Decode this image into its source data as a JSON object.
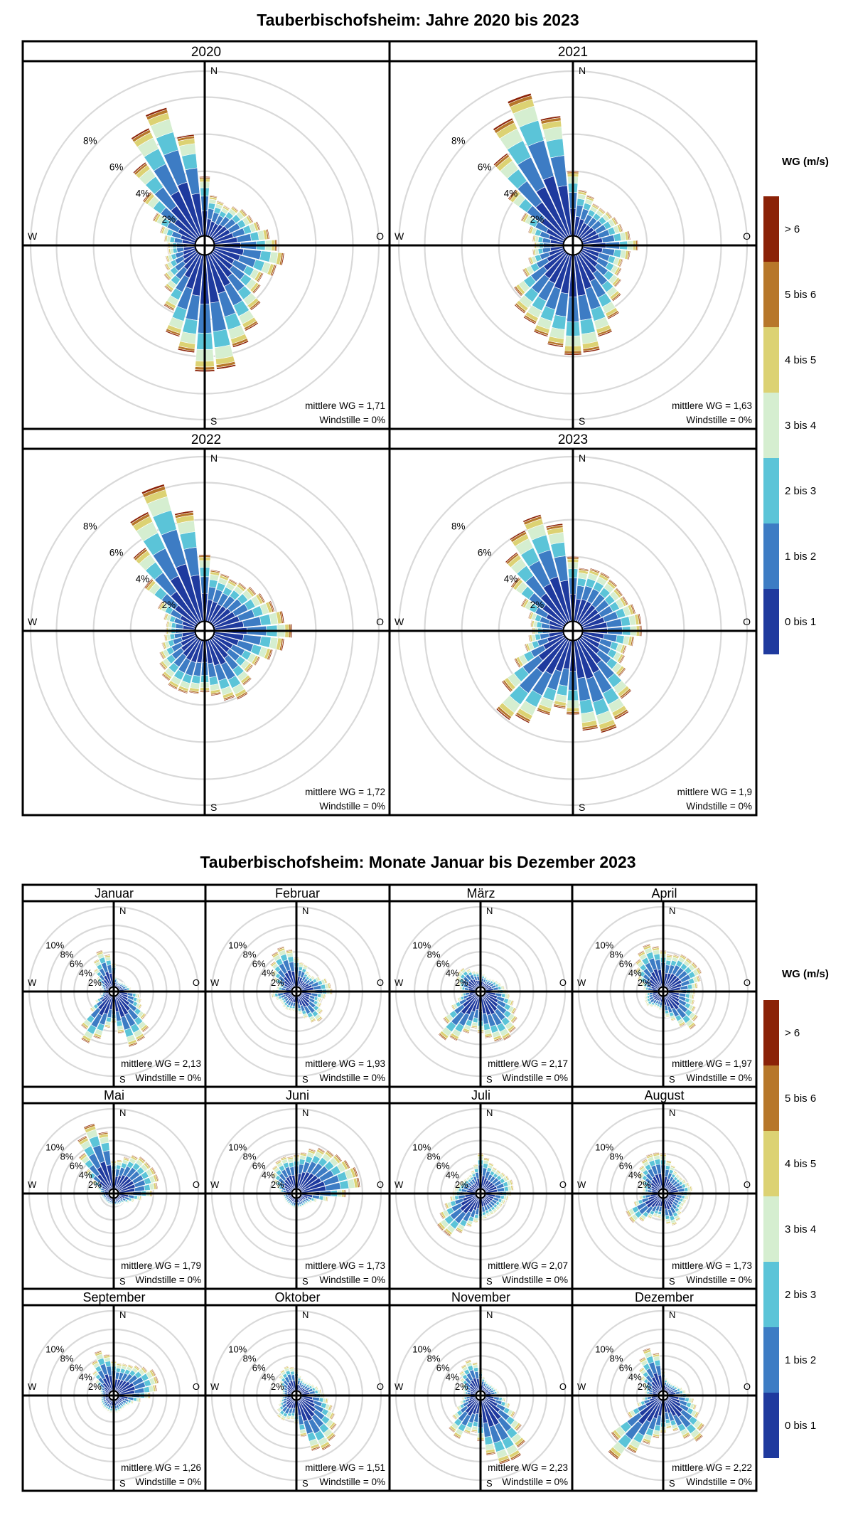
{
  "colors": {
    "bins": [
      "#1f3a9e",
      "#3d7cc4",
      "#5bc4d8",
      "#d5eed0",
      "#dcd273",
      "#b7772a",
      "#8b2207"
    ],
    "grid": "#d9d9d9"
  },
  "legend": {
    "title": "WG (m/s)",
    "labels": [
      "0 bis 1",
      "1 bis 2",
      "2 bis 3",
      "3 bis 4",
      "4 bis 5",
      "5 bis 6",
      "> 6"
    ]
  },
  "compass": {
    "n": "N",
    "e": "O",
    "s": "S",
    "w": "W"
  },
  "mean_prefix": "mittlere WG = ",
  "calm_text": "Windstille = 0%",
  "chart_data": [
    {
      "type": "windrose",
      "title": "Tauberbischofsheim: Jahre 2020 bis 2023",
      "sectors": 36,
      "rings_percent": [
        2,
        4,
        6,
        8
      ],
      "rmax_percent": 9.4,
      "ring_labels": [
        "2%",
        "4%",
        "6%",
        "8%"
      ],
      "panels": [
        {
          "title": "2020",
          "mean": "1,71",
          "calm": "0%",
          "totals": [
            3.2,
            2.2,
            2.0,
            1.9,
            2.1,
            2.3,
            2.4,
            2.6,
            3.0,
            3.4,
            3.8,
            3.5,
            3.0,
            3.2,
            3.8,
            4.6,
            5.2,
            6.2,
            6.3,
            5.3,
            4.6,
            3.4,
            2.6,
            2.2,
            1.9,
            1.7,
            1.5,
            1.5,
            1.7,
            2.0,
            2.6,
            3.6,
            5.0,
            6.5,
            7.2,
            5.5
          ]
        },
        {
          "title": "2021",
          "mean": "1,63",
          "calm": "0%",
          "totals": [
            3.5,
            2.5,
            2.3,
            2.0,
            2.0,
            2.1,
            2.2,
            2.3,
            2.6,
            3.0,
            2.6,
            2.3,
            2.4,
            2.7,
            3.2,
            3.9,
            4.6,
            5.3,
            5.4,
            5.0,
            4.6,
            4.2,
            4.0,
            3.4,
            2.5,
            2.0,
            1.7,
            1.6,
            1.7,
            2.0,
            2.6,
            3.8,
            5.6,
            7.1,
            8.0,
            6.5
          ]
        },
        {
          "title": "2022",
          "mean": "1,72",
          "calm": "0%",
          "totals": [
            3.6,
            2.8,
            2.7,
            2.6,
            2.7,
            2.9,
            3.1,
            3.4,
            3.8,
            4.2,
            3.8,
            3.3,
            2.8,
            2.7,
            3.1,
            3.6,
            3.4,
            3.0,
            2.8,
            2.9,
            3.0,
            3.0,
            2.8,
            2.5,
            2.2,
            1.9,
            1.7,
            1.6,
            1.6,
            1.8,
            2.3,
            3.5,
            5.0,
            6.6,
            7.7,
            6.0
          ]
        },
        {
          "title": "2023",
          "mean": "1,9",
          "calm": "0%",
          "totals": [
            3.5,
            2.9,
            3.0,
            3.0,
            2.9,
            2.8,
            2.8,
            3.0,
            3.2,
            3.2,
            2.8,
            2.5,
            2.6,
            3.0,
            4.0,
            4.8,
            5.2,
            4.9,
            4.0,
            3.7,
            4.2,
            5.0,
            5.4,
            4.2,
            3.0,
            2.2,
            1.9,
            1.7,
            1.8,
            2.0,
            2.6,
            3.6,
            4.7,
            5.5,
            6.0,
            5.3
          ]
        }
      ]
    },
    {
      "type": "windrose",
      "title": "Tauberbischofsheim: Monate Januar bis Dezember 2023",
      "sectors": 36,
      "rings_percent": [
        2,
        4,
        6,
        8,
        10
      ],
      "rmax_percent": 12.8,
      "ring_labels": [
        "2%",
        "4%",
        "6%",
        "8%",
        "10%"
      ],
      "panels": [
        {
          "title": "Januar",
          "mean": "2,13",
          "calm": "0%",
          "totals": [
            3.6,
            1.6,
            1.2,
            1.0,
            1.1,
            1.3,
            1.5,
            1.7,
            2.0,
            2.6,
            3.3,
            3.7,
            4.1,
            5.4,
            6.9,
            7.7,
            8.0,
            5.7,
            4.1,
            4.9,
            6.8,
            8.0,
            6.4,
            3.8,
            2.5,
            1.6,
            1.2,
            1.0,
            1.1,
            1.4,
            1.8,
            2.6,
            3.7,
            4.8,
            5.8,
            5.0
          ]
        },
        {
          "title": "Februar",
          "mean": "1,93",
          "calm": "0%",
          "totals": [
            4.5,
            3.8,
            3.6,
            2.8,
            2.6,
            2.8,
            3.4,
            4.2,
            4.6,
            4.8,
            3.8,
            3.3,
            3.6,
            4.3,
            5.0,
            4.6,
            3.6,
            2.8,
            2.5,
            2.3,
            2.4,
            2.5,
            2.4,
            2.2,
            2.2,
            2.6,
            3.2,
            3.0,
            2.4,
            2.2,
            3.2,
            4.0,
            5.0,
            6.0,
            6.4,
            5.7
          ]
        },
        {
          "title": "März",
          "mean": "2,17",
          "calm": "0%",
          "totals": [
            2.6,
            2.0,
            1.8,
            1.6,
            1.8,
            2.0,
            2.3,
            2.6,
            3.0,
            3.3,
            3.8,
            4.6,
            5.4,
            6.2,
            7.0,
            7.5,
            7.2,
            6.4,
            5.6,
            5.0,
            5.9,
            7.6,
            8.4,
            6.3,
            4.3,
            3.0,
            2.4,
            2.4,
            2.6,
            3.0,
            3.5,
            3.8,
            3.8,
            3.2,
            2.6,
            2.4
          ]
        },
        {
          "title": "April",
          "mean": "1,97",
          "calm": "0%",
          "totals": [
            5.5,
            5.0,
            5.2,
            5.6,
            5.6,
            5.7,
            5.8,
            5.2,
            4.6,
            4.2,
            4.1,
            4.3,
            4.8,
            5.8,
            6.4,
            5.3,
            4.0,
            3.3,
            2.6,
            2.2,
            2.0,
            2.0,
            2.3,
            2.6,
            2.5,
            2.3,
            2.1,
            2.1,
            2.4,
            2.9,
            3.7,
            4.6,
            5.4,
            6.2,
            6.8,
            6.2
          ]
        },
        {
          "title": "Mai",
          "mean": "1,79",
          "calm": "0%",
          "totals": [
            4.3,
            4.5,
            5.1,
            5.8,
            6.2,
            6.2,
            6.4,
            6.4,
            6.0,
            5.2,
            3.6,
            2.6,
            2.0,
            1.5,
            1.3,
            1.3,
            1.2,
            1.2,
            1.1,
            1.1,
            1.1,
            1.1,
            1.1,
            1.1,
            1.1,
            1.2,
            1.3,
            1.4,
            1.6,
            2.0,
            3.0,
            4.7,
            6.9,
            9.0,
            10.3,
            8.7
          ]
        },
        {
          "title": "Juni",
          "mean": "1,73",
          "calm": "0%",
          "totals": [
            5.2,
            5.6,
            6.4,
            7.0,
            7.4,
            7.8,
            8.3,
            9.0,
            9.0,
            6.8,
            4.2,
            2.6,
            2.0,
            1.7,
            1.6,
            1.6,
            1.6,
            1.6,
            1.6,
            1.6,
            1.5,
            1.4,
            1.4,
            1.4,
            1.4,
            1.4,
            1.5,
            1.7,
            2.0,
            2.5,
            3.2,
            4.0,
            4.6,
            5.0,
            5.2,
            5.0
          ]
        },
        {
          "title": "Juli",
          "mean": "2,07",
          "calm": "0%",
          "totals": [
            5.4,
            4.8,
            4.2,
            3.8,
            3.8,
            4.0,
            4.2,
            4.5,
            4.4,
            4.0,
            3.6,
            3.3,
            3.1,
            3.0,
            3.0,
            3.0,
            3.0,
            3.2,
            3.4,
            3.8,
            4.6,
            6.0,
            7.3,
            7.4,
            6.2,
            5.0,
            4.0,
            3.6,
            3.3,
            3.0,
            2.8,
            2.6,
            2.5,
            2.6,
            3.0,
            3.8
          ]
        },
        {
          "title": "August",
          "mean": "1,73",
          "calm": "0%",
          "totals": [
            5.4,
            4.4,
            3.8,
            3.2,
            3.0,
            3.0,
            3.2,
            3.5,
            3.8,
            3.6,
            3.2,
            3.0,
            2.9,
            3.0,
            3.4,
            4.0,
            4.4,
            4.0,
            3.5,
            3.1,
            3.1,
            3.6,
            4.6,
            5.7,
            5.6,
            4.0,
            3.0,
            2.6,
            2.5,
            2.7,
            3.2,
            4.0,
            4.6,
            5.2,
            5.6,
            5.6
          ]
        },
        {
          "title": "September",
          "mean": "1,26",
          "calm": "0%",
          "totals": [
            4.6,
            4.3,
            4.4,
            4.6,
            5.0,
            5.6,
            6.4,
            6.4,
            5.9,
            4.9,
            3.5,
            2.5,
            2.1,
            1.8,
            1.8,
            1.8,
            1.9,
            2.0,
            2.1,
            2.0,
            1.9,
            1.8,
            1.8,
            1.7,
            1.6,
            1.5,
            1.4,
            1.4,
            1.4,
            1.6,
            2.0,
            2.8,
            4.0,
            5.3,
            6.4,
            5.6
          ]
        },
        {
          "title": "Oktober",
          "mean": "1,51",
          "calm": "0%",
          "totals": [
            3.2,
            2.4,
            2.0,
            1.8,
            1.9,
            2.1,
            2.4,
            2.8,
            3.2,
            3.6,
            4.2,
            5.0,
            5.8,
            6.8,
            7.8,
            8.5,
            8.0,
            5.6,
            3.6,
            3.0,
            3.2,
            3.6,
            3.6,
            3.0,
            2.4,
            2.0,
            1.7,
            1.6,
            1.6,
            1.8,
            2.1,
            2.6,
            3.2,
            3.7,
            4.0,
            3.7
          ]
        },
        {
          "title": "November",
          "mean": "2,23",
          "calm": "0%",
          "totals": [
            3.2,
            2.2,
            1.8,
            1.6,
            1.6,
            1.7,
            1.8,
            2.0,
            2.2,
            2.6,
            3.2,
            4.0,
            5.2,
            7.0,
            9.0,
            10.2,
            10.1,
            8.4,
            6.2,
            5.0,
            5.4,
            6.6,
            6.2,
            4.6,
            3.4,
            2.6,
            2.2,
            2.0,
            2.0,
            2.2,
            2.6,
            3.2,
            4.0,
            4.6,
            5.0,
            4.4
          ]
        },
        {
          "title": "Dezember",
          "mean": "2,22",
          "calm": "0%",
          "totals": [
            3.0,
            2.0,
            1.7,
            1.6,
            1.6,
            1.8,
            2.0,
            2.4,
            2.8,
            3.4,
            4.0,
            4.6,
            5.4,
            7.0,
            7.9,
            6.6,
            5.0,
            4.4,
            5.0,
            5.8,
            7.0,
            9.0,
            11.2,
            9.0,
            5.4,
            3.5,
            2.6,
            2.2,
            2.2,
            2.4,
            2.8,
            3.6,
            4.6,
            5.8,
            6.8,
            5.8
          ]
        }
      ]
    }
  ]
}
